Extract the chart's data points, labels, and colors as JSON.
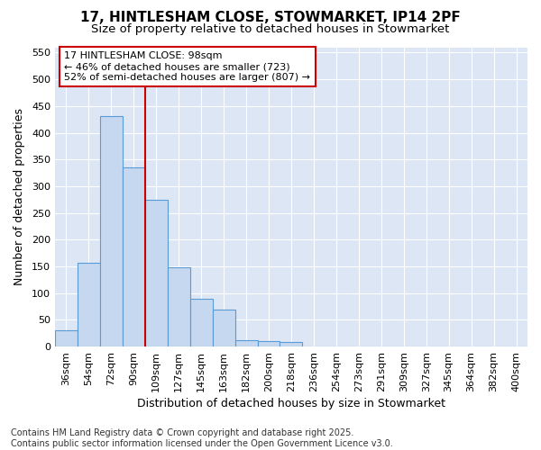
{
  "title_line1": "17, HINTLESHAM CLOSE, STOWMARKET, IP14 2PF",
  "title_line2": "Size of property relative to detached houses in Stowmarket",
  "xlabel": "Distribution of detached houses by size in Stowmarket",
  "ylabel": "Number of detached properties",
  "categories": [
    "36sqm",
    "54sqm",
    "72sqm",
    "90sqm",
    "109sqm",
    "127sqm",
    "145sqm",
    "163sqm",
    "182sqm",
    "200sqm",
    "218sqm",
    "236sqm",
    "254sqm",
    "273sqm",
    "291sqm",
    "309sqm",
    "327sqm",
    "345sqm",
    "364sqm",
    "382sqm",
    "400sqm"
  ],
  "values": [
    30,
    157,
    432,
    335,
    275,
    148,
    90,
    70,
    12,
    10,
    8,
    0,
    0,
    0,
    0,
    0,
    0,
    0,
    0,
    0,
    0
  ],
  "bar_color": "#c5d8f0",
  "bar_edge_color": "#5b9bd5",
  "plot_bg_color": "#dce6f5",
  "fig_bg_color": "#ffffff",
  "grid_color": "#ffffff",
  "vline_color": "#cc0000",
  "ylim": [
    0,
    560
  ],
  "yticks": [
    0,
    50,
    100,
    150,
    200,
    250,
    300,
    350,
    400,
    450,
    500,
    550
  ],
  "annotation_text": "17 HINTLESHAM CLOSE: 98sqm\n← 46% of detached houses are smaller (723)\n52% of semi-detached houses are larger (807) →",
  "annotation_box_color": "#ffffff",
  "annotation_edge_color": "#cc0000",
  "footer_text": "Contains HM Land Registry data © Crown copyright and database right 2025.\nContains public sector information licensed under the Open Government Licence v3.0.",
  "title_fontsize": 11,
  "subtitle_fontsize": 9.5,
  "axis_label_fontsize": 9,
  "tick_fontsize": 8,
  "annotation_fontsize": 8,
  "footer_fontsize": 7
}
